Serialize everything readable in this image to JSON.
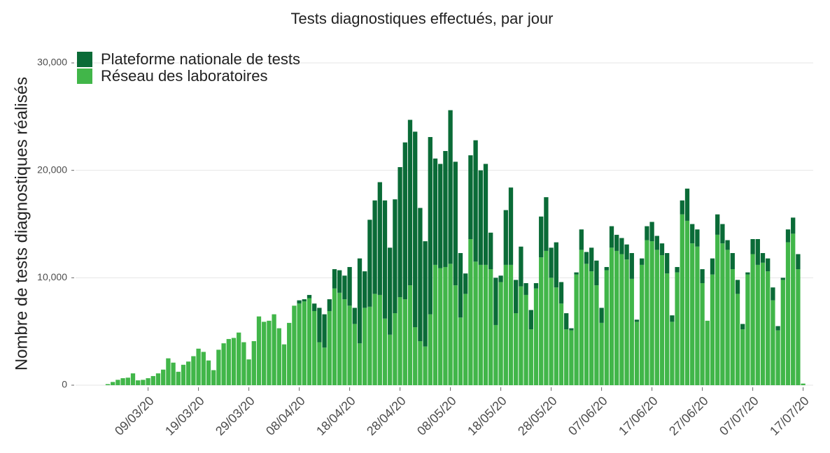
{
  "chart_data": {
    "type": "stacked_bar",
    "title": "Tests diagnostiques effectués, par jour",
    "y_label": "Nombre de tests diagnostiques réalisés",
    "x": [
      "01/03/20",
      "02/03/20",
      "03/03/20",
      "04/03/20",
      "05/03/20",
      "06/03/20",
      "07/03/20",
      "08/03/20",
      "09/03/20",
      "10/03/20",
      "11/03/20",
      "12/03/20",
      "13/03/20",
      "14/03/20",
      "15/03/20",
      "16/03/20",
      "17/03/20",
      "18/03/20",
      "19/03/20",
      "20/03/20",
      "21/03/20",
      "22/03/20",
      "23/03/20",
      "24/03/20",
      "25/03/20",
      "26/03/20",
      "27/03/20",
      "28/03/20",
      "29/03/20",
      "30/03/20",
      "31/03/20",
      "01/04/20",
      "02/04/20",
      "03/04/20",
      "04/04/20",
      "05/04/20",
      "06/04/20",
      "07/04/20",
      "08/04/20",
      "09/04/20",
      "10/04/20",
      "11/04/20",
      "12/04/20",
      "13/04/20",
      "14/04/20",
      "15/04/20",
      "16/04/20",
      "17/04/20",
      "18/04/20",
      "19/04/20",
      "20/04/20",
      "21/04/20",
      "22/04/20",
      "23/04/20",
      "24/04/20",
      "25/04/20",
      "26/04/20",
      "27/04/20",
      "28/04/20",
      "29/04/20",
      "30/04/20",
      "01/05/20",
      "02/05/20",
      "03/05/20",
      "04/05/20",
      "05/05/20",
      "06/05/20",
      "07/05/20",
      "08/05/20",
      "09/05/20",
      "10/05/20",
      "11/05/20",
      "12/05/20",
      "13/05/20",
      "14/05/20",
      "15/05/20",
      "16/05/20",
      "17/05/20",
      "18/05/20",
      "19/05/20",
      "20/05/20",
      "21/05/20",
      "22/05/20",
      "23/05/20",
      "24/05/20",
      "25/05/20",
      "26/05/20",
      "27/05/20",
      "28/05/20",
      "29/05/20",
      "30/05/20",
      "31/05/20",
      "01/06/20",
      "02/06/20",
      "03/06/20",
      "04/06/20",
      "05/06/20",
      "06/06/20",
      "07/06/20",
      "08/06/20",
      "09/06/20",
      "10/06/20",
      "11/06/20",
      "12/06/20",
      "13/06/20",
      "14/06/20",
      "15/06/20",
      "16/06/20",
      "17/06/20",
      "18/06/20",
      "19/06/20",
      "20/06/20",
      "21/06/20",
      "22/06/20",
      "23/06/20",
      "24/06/20",
      "25/06/20",
      "26/06/20",
      "27/06/20",
      "28/06/20",
      "29/06/20",
      "30/06/20",
      "01/07/20",
      "02/07/20",
      "03/07/20",
      "04/07/20",
      "05/07/20",
      "06/07/20",
      "07/07/20",
      "08/07/20",
      "09/07/20",
      "10/07/20",
      "11/07/20",
      "12/07/20",
      "13/07/20",
      "14/07/20",
      "15/07/20",
      "16/07/20",
      "17/07/20"
    ],
    "xticks": [
      "09/03/20",
      "19/03/20",
      "29/03/20",
      "08/04/20",
      "18/04/20",
      "28/04/20",
      "08/05/20",
      "18/05/20",
      "28/05/20",
      "07/06/20",
      "17/06/20",
      "27/06/20",
      "07/07/20",
      "17/07/20"
    ],
    "series": [
      {
        "name": "Plateforme nationale de tests",
        "color": "#0a6b37",
        "values": [
          0,
          0,
          0,
          0,
          0,
          0,
          0,
          0,
          0,
          0,
          0,
          0,
          0,
          0,
          0,
          0,
          0,
          0,
          0,
          0,
          0,
          0,
          0,
          0,
          0,
          0,
          0,
          0,
          0,
          0,
          0,
          0,
          0,
          0,
          0,
          0,
          0,
          0,
          300,
          200,
          300,
          700,
          3200,
          3100,
          1100,
          1800,
          2100,
          2200,
          3600,
          1500,
          7900,
          3400,
          8100,
          8700,
          10500,
          11000,
          8100,
          10600,
          12100,
          14600,
          15400,
          18200,
          12400,
          9800,
          16500,
          9900,
          9700,
          10800,
          14300,
          11500,
          6000,
          1900,
          7800,
          11300,
          8800,
          9400,
          3400,
          4400,
          600,
          5100,
          7200,
          3100,
          3700,
          1100,
          1800,
          500,
          3800,
          5000,
          2800,
          4200,
          2000,
          1500,
          200,
          200,
          1900,
          1100,
          2200,
          2300,
          1400,
          300,
          2000,
          1500,
          1500,
          1400,
          2400,
          200,
          600,
          1300,
          1800,
          1300,
          1100,
          1900,
          600,
          500,
          1300,
          3000,
          1800,
          1600,
          1300,
          0,
          1500,
          1900,
          1800,
          900,
          1500,
          1300,
          500,
          200,
          1400,
          2400,
          900,
          1200,
          1200,
          400,
          200,
          1200,
          1500,
          1400,
          0
        ]
      },
      {
        "name": "Réseau des laboratoires",
        "color": "#41b649",
        "values": [
          100,
          300,
          500,
          650,
          700,
          1100,
          450,
          500,
          650,
          850,
          1100,
          1450,
          2500,
          2100,
          1250,
          1900,
          2200,
          2700,
          3400,
          3100,
          2300,
          1400,
          3300,
          3900,
          4300,
          4400,
          4900,
          4000,
          2400,
          4100,
          6400,
          5900,
          6000,
          6600,
          5300,
          3800,
          5800,
          7400,
          7600,
          7800,
          8100,
          6900,
          4000,
          3500,
          6900,
          9000,
          8600,
          8000,
          7400,
          5700,
          3900,
          7200,
          7300,
          8500,
          8400,
          6200,
          4700,
          6700,
          8200,
          8000,
          9300,
          5400,
          4100,
          3600,
          6600,
          11200,
          10900,
          11000,
          11300,
          9300,
          6300,
          8500,
          13600,
          11500,
          11200,
          11200,
          10800,
          5600,
          9600,
          11200,
          11200,
          6700,
          9200,
          8400,
          5200,
          9000,
          11900,
          12500,
          10000,
          9100,
          7600,
          5200,
          5100,
          10300,
          12600,
          11300,
          10600,
          9300,
          5800,
          10700,
          12800,
          12500,
          12200,
          11700,
          9900,
          5900,
          11200,
          13500,
          13400,
          12600,
          12100,
          10400,
          5900,
          10500,
          15900,
          15300,
          13200,
          12900,
          9500,
          6000,
          10300,
          14000,
          13200,
          12600,
          10800,
          8500,
          5200,
          10300,
          12200,
          11200,
          11400,
          10600,
          7900,
          5100,
          9800,
          13300,
          14100,
          10800,
          150
        ]
      }
    ],
    "ylim": [
      0,
      30000
    ],
    "yticks": [
      0,
      {
        "value": 10000,
        "label": "10,000"
      },
      {
        "value": 20000,
        "label": "20,000"
      },
      {
        "value": 30000,
        "label": "30,000"
      }
    ],
    "grid": true,
    "legend": "top-left"
  }
}
